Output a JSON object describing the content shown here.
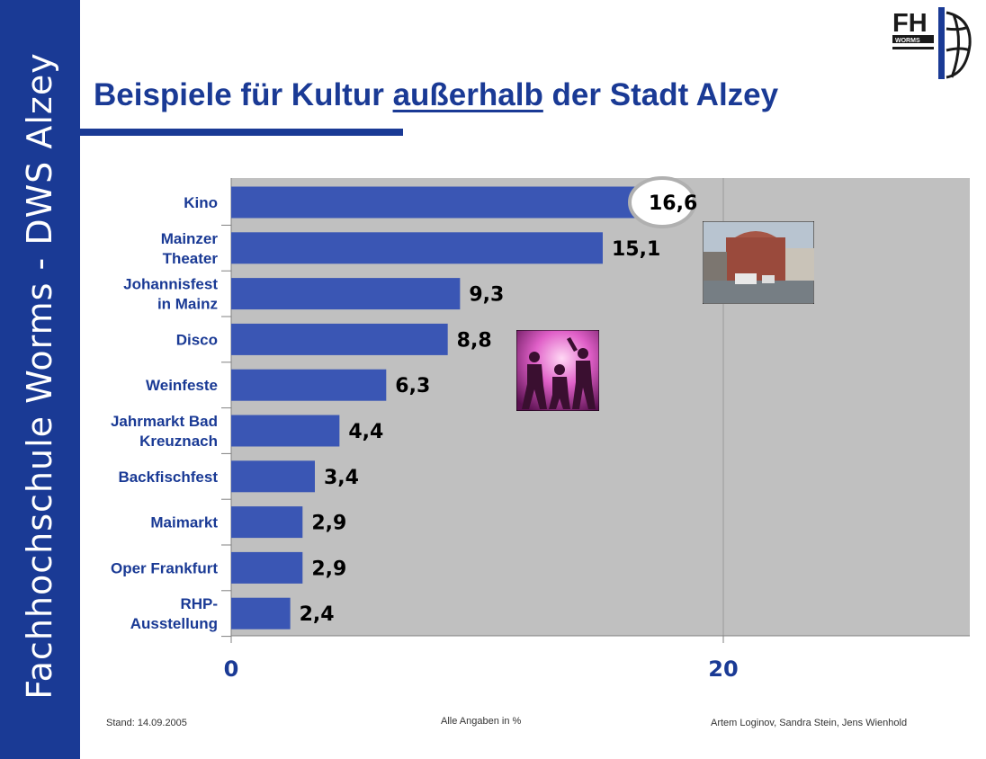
{
  "sidebar": {
    "text": "Fachhochschule Worms - DWS Alzey"
  },
  "header": {
    "title_part1": "Beispiele für Kultur ",
    "title_part2": "außerhalb",
    "title_part3": " der Stadt Alzey",
    "logo_text": "FH",
    "logo_subtext": "WORMS"
  },
  "chart_data": {
    "type": "bar",
    "orientation": "horizontal",
    "categories": [
      "Kino",
      "Mainzer Theater",
      "Johannisfest in Mainz",
      "Disco",
      "Weinfeste",
      "Jahrmarkt Bad Kreuznach",
      "Backfischfest",
      "Maimarkt",
      "Oper Frankfurt",
      "RHP- Ausstellung"
    ],
    "category_lines": [
      [
        "Kino"
      ],
      [
        "Mainzer",
        "Theater"
      ],
      [
        "Johannisfest",
        "in Mainz"
      ],
      [
        "Disco"
      ],
      [
        "Weinfeste"
      ],
      [
        "Jahrmarkt Bad",
        "Kreuznach"
      ],
      [
        "Backfischfest"
      ],
      [
        "Maimarkt"
      ],
      [
        "Oper Frankfurt"
      ],
      [
        "RHP-",
        "Ausstellung"
      ]
    ],
    "values": [
      16.6,
      15.1,
      9.3,
      8.8,
      6.3,
      4.4,
      3.4,
      2.9,
      2.9,
      2.4
    ],
    "value_labels": [
      "16,6",
      "15,1",
      "9,3",
      "8,8",
      "6,3",
      "4,4",
      "3,4",
      "2,9",
      "2,9",
      "2,4"
    ],
    "xlim": [
      0,
      30
    ],
    "x_ticks": [
      "0",
      "20"
    ],
    "grid": true,
    "highlight": "Kino",
    "colors": {
      "bar": "#3a56b4",
      "plot_bg": "#c0c0c0",
      "accent": "#1a3a95"
    }
  },
  "footer": {
    "date": "Stand: 14.09.2005",
    "note": "Alle Angaben in %",
    "authors": "Artem Loginov, Sandra Stein, Jens Wienhold"
  }
}
